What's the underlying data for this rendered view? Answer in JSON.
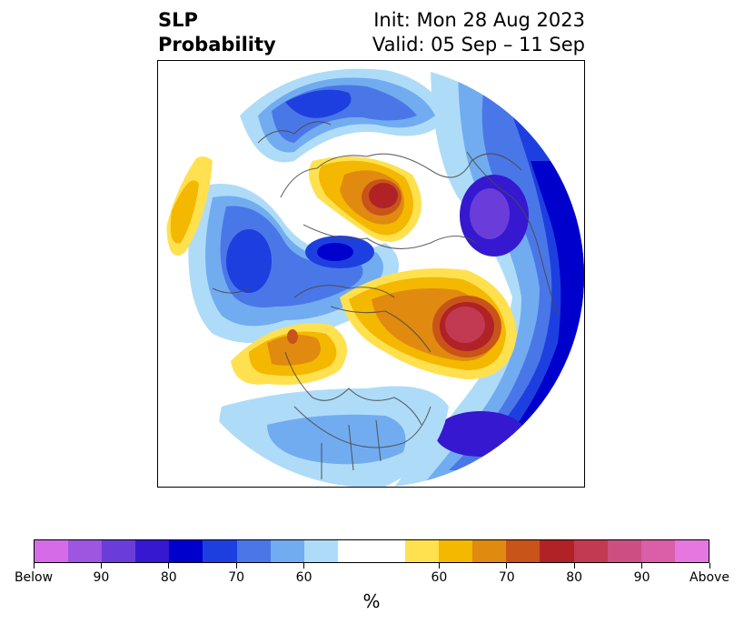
{
  "header": {
    "title_line1": "SLP",
    "title_line2": "Probability",
    "init": "Init: Mon 28 Aug 2023",
    "valid": "Valid: 05 Sep – 11 Sep"
  },
  "colorbar": {
    "unit": "%",
    "below_colors": [
      "#d66be8",
      "#9e55e0",
      "#6a3ddb",
      "#3518d0",
      "#0000cd",
      "#1e3fe0",
      "#4a77e8",
      "#72acf0",
      "#aedcf8"
    ],
    "above_colors": [
      "#ffe14f",
      "#f4b800",
      "#e08a10",
      "#c8541a",
      "#b02225",
      "#c23a52",
      "#cc4f82",
      "#da5ea8",
      "#e677e0"
    ],
    "neutral_color": "#ffffff",
    "tick_labels": [
      "Below",
      "90",
      "80",
      "70",
      "60",
      "60",
      "70",
      "80",
      "90",
      "Above"
    ]
  }
}
